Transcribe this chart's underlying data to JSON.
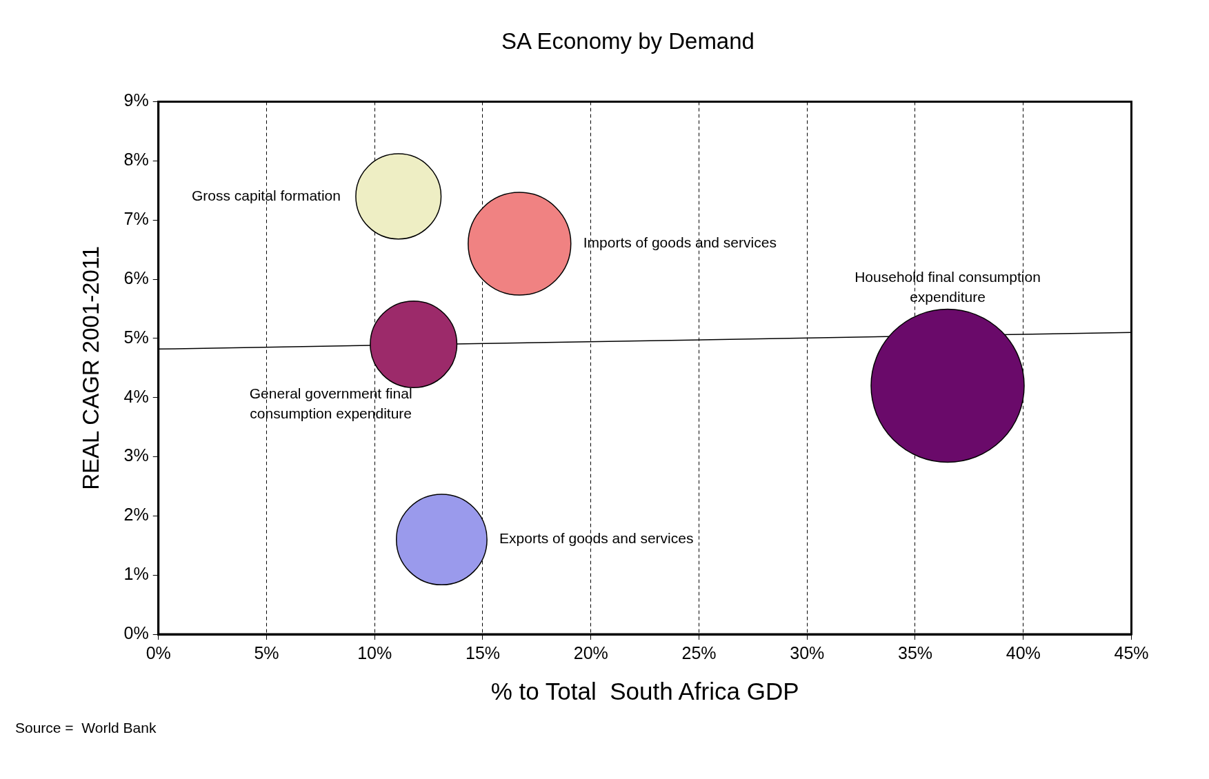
{
  "chart_data": {
    "type": "bubble",
    "title": "SA Economy by Demand",
    "xlabel": "% to Total  South Africa GDP",
    "ylabel": "REAL CAGR 2001-2011",
    "xlim": [
      0,
      45
    ],
    "xticks": [
      {
        "value": 0,
        "label": "0%"
      },
      {
        "value": 5,
        "label": "5%"
      },
      {
        "value": 10,
        "label": "10%"
      },
      {
        "value": 15,
        "label": "15%"
      },
      {
        "value": 20,
        "label": "20%"
      },
      {
        "value": 25,
        "label": "25%"
      },
      {
        "value": 30,
        "label": "30%"
      },
      {
        "value": 35,
        "label": "35%"
      },
      {
        "value": 40,
        "label": "40%"
      },
      {
        "value": 45,
        "label": "45%"
      }
    ],
    "ylim": [
      0,
      9
    ],
    "yticks": [
      {
        "value": 0,
        "label": "0%"
      },
      {
        "value": 1,
        "label": "1%"
      },
      {
        "value": 2,
        "label": "2%"
      },
      {
        "value": 3,
        "label": "3%"
      },
      {
        "value": 4,
        "label": "4%"
      },
      {
        "value": 5,
        "label": "5%"
      },
      {
        "value": 6,
        "label": "6%"
      },
      {
        "value": 7,
        "label": "7%"
      },
      {
        "value": 8,
        "label": "8%"
      },
      {
        "value": 9,
        "label": "9%"
      }
    ],
    "grid": "x",
    "legend": false,
    "series": [
      {
        "name": "Gross capital formation",
        "color": "#eeeec4",
        "x": [
          11.1
        ],
        "values": [
          7.4
        ],
        "sizes": [
          0.31
        ]
      },
      {
        "name": "Imports of goods and services",
        "color": "#f08282",
        "x": [
          16.7
        ],
        "values": [
          6.6
        ],
        "sizes": [
          0.45
        ]
      },
      {
        "name": "Household final consumption expenditure",
        "color": "#6a0a6a",
        "x": [
          36.5
        ],
        "values": [
          4.2
        ],
        "sizes": [
          1
        ]
      },
      {
        "name": "General government final consumption expenditure",
        "color": "#9c2a6a",
        "x": [
          11.8
        ],
        "values": [
          4.9
        ],
        "sizes": [
          0.32
        ]
      },
      {
        "name": "Exports of goods and services",
        "color": "#9a9aec",
        "x": [
          13.1
        ],
        "values": [
          1.6
        ],
        "sizes": [
          0.35
        ]
      },
      {
        "type": "line",
        "color": "#000000",
        "x": [
          0,
          45
        ],
        "values": [
          4.82,
          5.1
        ]
      }
    ],
    "annotations": [
      "Source =  World Bank"
    ]
  }
}
